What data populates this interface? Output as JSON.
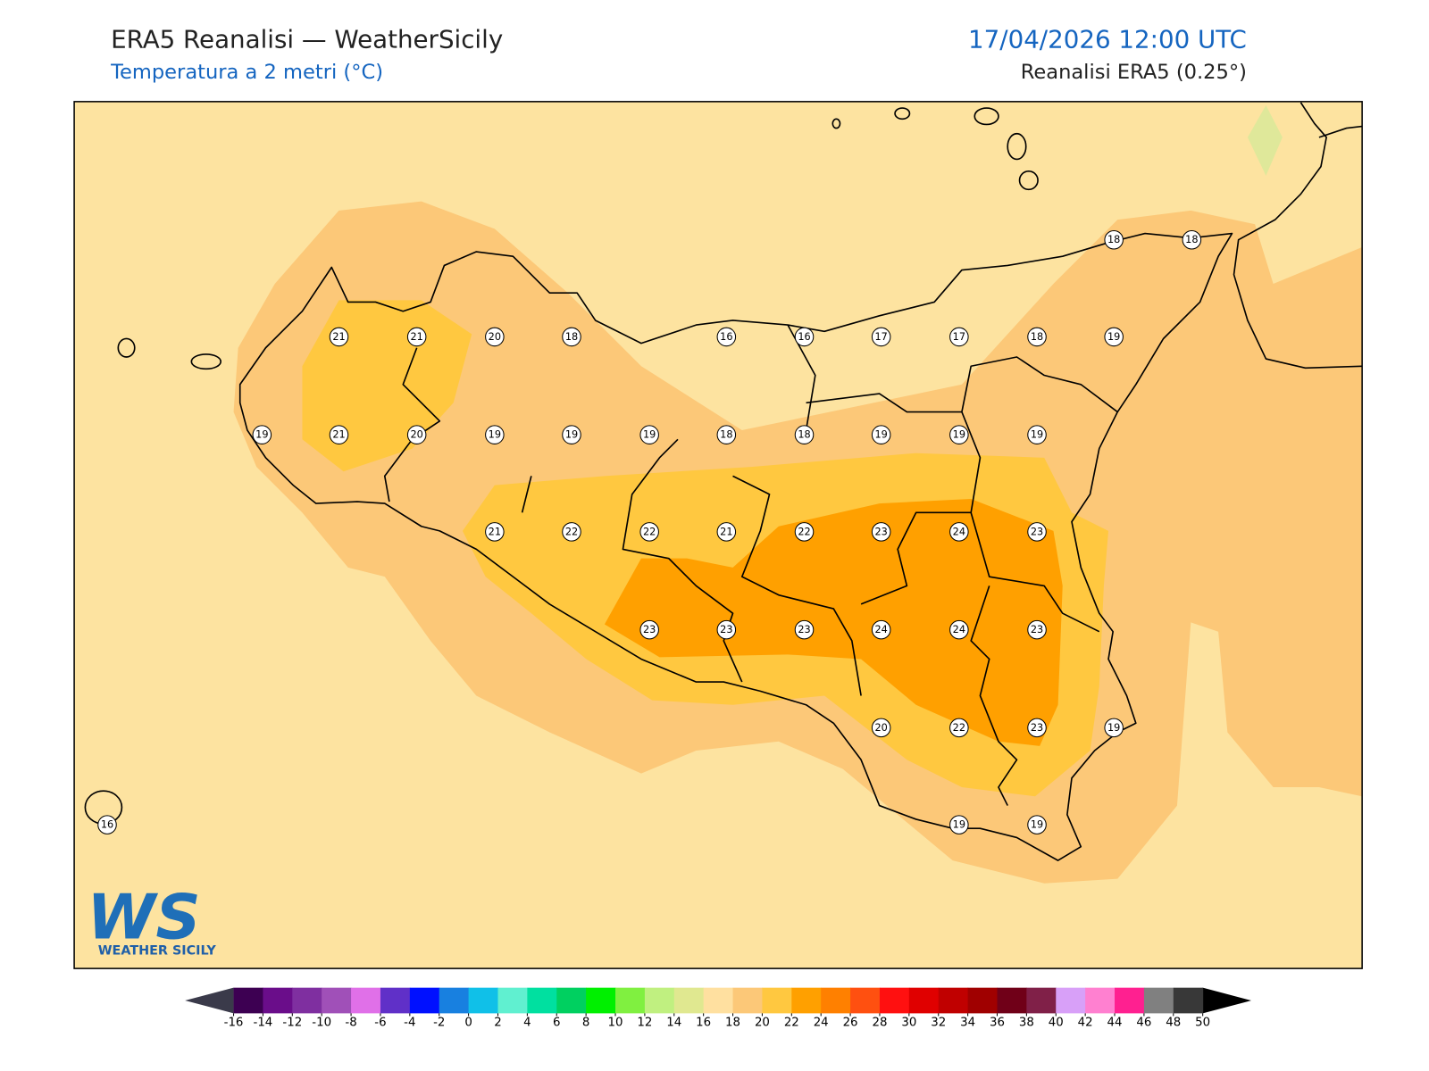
{
  "header": {
    "title": "ERA5 Reanalisi — WeatherSicily",
    "subtitle": "Temperatura a 2 metri (°C)",
    "datetime": "17/04/2026 12:00 UTC",
    "source": "Reanalisi ERA5 (0.25°)"
  },
  "map": {
    "stations": [
      18,
      18,
      21,
      21,
      20,
      18,
      16,
      16,
      17,
      17,
      18,
      19,
      19,
      21,
      20,
      19,
      19,
      19,
      18,
      18,
      19,
      19,
      19,
      21,
      22,
      22,
      21,
      22,
      23,
      24,
      23,
      23,
      23,
      23,
      24,
      24,
      23,
      20,
      22,
      23,
      19,
      16,
      19,
      19
    ]
  },
  "colorbar": {
    "ticks": [
      -16,
      -14,
      -12,
      -10,
      -8,
      -6,
      -4,
      -2,
      0,
      2,
      4,
      6,
      8,
      10,
      12,
      14,
      16,
      18,
      20,
      22,
      24,
      26,
      28,
      30,
      32,
      34,
      36,
      38,
      40,
      42,
      44,
      46,
      48,
      50
    ],
    "colors": [
      "#3d0052",
      "#6a0d8a",
      "#7f2fa0",
      "#a050b8",
      "#e070e8",
      "#6030c8",
      "#0010ff",
      "#1880e0",
      "#10c0e8",
      "#60f0d0",
      "#00e0a0",
      "#00d060",
      "#00f000",
      "#80f040",
      "#c0f080",
      "#e0e890",
      "#ffe0a0",
      "#fcc878",
      "#ffc840",
      "#ffa000",
      "#ff8000",
      "#ff5010",
      "#ff1010",
      "#e00000",
      "#c00000",
      "#a00000",
      "#700018",
      "#802048",
      "#d8a0f8",
      "#ff80d0",
      "#ff2090",
      "#808080",
      "#383838"
    ],
    "under_color": "#3a3a4a",
    "over_color": "#000000"
  },
  "logo": {
    "mark": "WS",
    "name": "WEATHER SICILY"
  }
}
